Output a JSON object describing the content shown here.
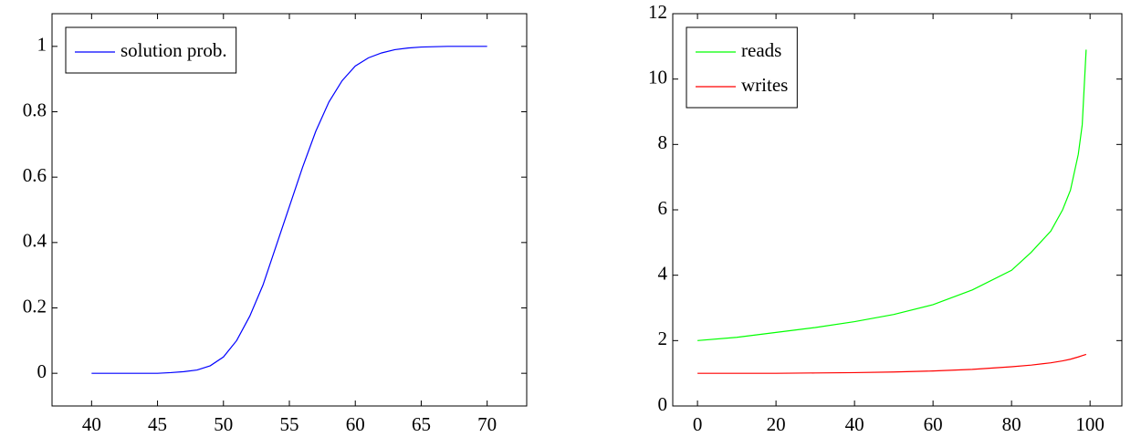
{
  "chart_data": [
    {
      "type": "line",
      "x": [
        40,
        41,
        42,
        43,
        44,
        45,
        46,
        47,
        48,
        49,
        50,
        51,
        52,
        53,
        54,
        55,
        56,
        57,
        58,
        59,
        60,
        61,
        62,
        63,
        64,
        65,
        66,
        67,
        68,
        69,
        70
      ],
      "series": [
        {
          "name": "solution prob.",
          "color": "#0000ff",
          "values": [
            0,
            0,
            0,
            0,
            0,
            0,
            0.002,
            0.005,
            0.01,
            0.023,
            0.05,
            0.1,
            0.175,
            0.27,
            0.39,
            0.51,
            0.63,
            0.74,
            0.83,
            0.895,
            0.94,
            0.965,
            0.98,
            0.99,
            0.995,
            0.998,
            0.999,
            1,
            1,
            1,
            1
          ]
        }
      ],
      "xlim": [
        37,
        73
      ],
      "xticks": [
        40,
        45,
        50,
        55,
        60,
        65,
        70
      ],
      "ylim": [
        -0.1,
        1.1
      ],
      "yticks": [
        0,
        0.2,
        0.4,
        0.6,
        0.8,
        1
      ],
      "grid": false,
      "legend": "upper left"
    },
    {
      "type": "line",
      "x": [
        0,
        10,
        20,
        30,
        40,
        50,
        60,
        70,
        80,
        85,
        90,
        93,
        95,
        97,
        98,
        99
      ],
      "series": [
        {
          "name": "reads",
          "color": "#00ff00",
          "values": [
            2.0,
            2.1,
            2.25,
            2.4,
            2.58,
            2.8,
            3.1,
            3.55,
            4.15,
            4.7,
            5.35,
            6.0,
            6.6,
            7.7,
            8.6,
            10.9
          ]
        },
        {
          "name": "writes",
          "color": "#ff0000",
          "values": [
            1,
            1,
            1,
            1.01,
            1.02,
            1.04,
            1.07,
            1.12,
            1.2,
            1.25,
            1.32,
            1.38,
            1.43,
            1.5,
            1.54,
            1.58
          ]
        }
      ],
      "xlim": [
        -6.3,
        108.1
      ],
      "xticks": [
        0,
        20,
        40,
        60,
        80,
        100
      ],
      "ylim": [
        0,
        12
      ],
      "yticks": [
        0,
        2,
        4,
        6,
        8,
        10,
        12
      ],
      "grid": false,
      "legend": "upper left"
    }
  ]
}
